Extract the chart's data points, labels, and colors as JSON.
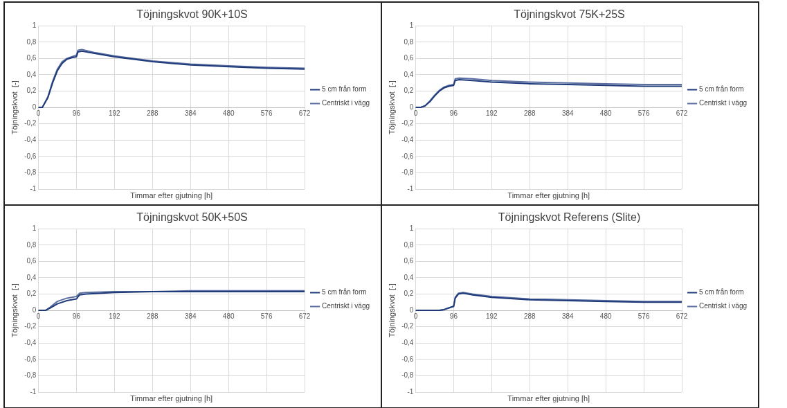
{
  "chart_data": [
    {
      "type": "line",
      "title": "Töjningskvot 90K+10S",
      "xlabel": "Timmar efter gjutning [h]",
      "ylabel": "Töjningskvot  [-]",
      "xlim": [
        0,
        672
      ],
      "xticks": [
        0,
        96,
        192,
        288,
        384,
        480,
        576,
        672
      ],
      "ylim": [
        -1,
        1
      ],
      "yticks": [
        -1,
        {
          "value": -0.8,
          "label": "-0,8"
        },
        {
          "value": -0.6,
          "label": "-0,6"
        },
        {
          "value": -0.4,
          "label": "-0,4"
        },
        {
          "value": -0.2,
          "label": "-0,2"
        },
        0,
        {
          "value": 0.2,
          "label": "0,2"
        },
        {
          "value": 0.4,
          "label": "0,4"
        },
        {
          "value": 0.6,
          "label": "0,6"
        },
        {
          "value": 0.8,
          "label": "0,8"
        },
        1
      ],
      "grid": true,
      "legend": "right",
      "marker": "none",
      "line_style": "solid",
      "series": [
        {
          "name": "5 cm från form",
          "color": "#1f3a7a",
          "x": [
            0,
            10,
            24,
            36,
            48,
            60,
            72,
            84,
            96,
            100,
            110,
            144,
            192,
            288,
            384,
            480,
            576,
            672
          ],
          "values": [
            0,
            0,
            0.12,
            0.3,
            0.45,
            0.54,
            0.59,
            0.61,
            0.62,
            0.68,
            0.69,
            0.66,
            0.62,
            0.56,
            0.52,
            0.5,
            0.48,
            0.47
          ]
        },
        {
          "name": "Centriskt i vägg",
          "color": "#5a6fa0",
          "x": [
            0,
            10,
            24,
            36,
            48,
            60,
            72,
            84,
            96,
            100,
            110,
            144,
            192,
            288,
            384,
            480,
            576,
            672
          ],
          "values": [
            0,
            0,
            0.13,
            0.32,
            0.47,
            0.56,
            0.6,
            0.62,
            0.64,
            0.7,
            0.71,
            0.67,
            0.63,
            0.57,
            0.53,
            0.51,
            0.49,
            0.48
          ]
        }
      ]
    },
    {
      "type": "line",
      "title": "Töjningskvot 75K+25S",
      "xlabel": "Timmar efter gjutning [h]",
      "ylabel": "Töjningskvot  [-]",
      "xlim": [
        0,
        672
      ],
      "xticks": [
        0,
        96,
        192,
        288,
        384,
        480,
        576,
        672
      ],
      "ylim": [
        -1,
        1
      ],
      "yticks": [
        -1,
        {
          "value": -0.8,
          "label": "-0,8"
        },
        {
          "value": -0.6,
          "label": "-0,6"
        },
        {
          "value": -0.4,
          "label": "-0,4"
        },
        {
          "value": -0.2,
          "label": "-0,2"
        },
        0,
        {
          "value": 0.2,
          "label": "0,2"
        },
        {
          "value": 0.4,
          "label": "0,4"
        },
        {
          "value": 0.6,
          "label": "0,6"
        },
        {
          "value": 0.8,
          "label": "0,8"
        },
        1
      ],
      "grid": true,
      "legend": "right",
      "marker": "none",
      "line_style": "solid",
      "series": [
        {
          "name": "5 cm från form",
          "color": "#1f3a7a",
          "x": [
            0,
            12,
            24,
            36,
            48,
            60,
            72,
            84,
            96,
            100,
            110,
            144,
            192,
            288,
            384,
            480,
            576,
            672
          ],
          "values": [
            0,
            0,
            0.02,
            0.07,
            0.14,
            0.2,
            0.24,
            0.26,
            0.27,
            0.33,
            0.34,
            0.33,
            0.31,
            0.29,
            0.28,
            0.27,
            0.26,
            0.26
          ]
        },
        {
          "name": "Centriskt i vägg",
          "color": "#5a6fa0",
          "x": [
            0,
            12,
            24,
            36,
            48,
            60,
            72,
            84,
            96,
            100,
            110,
            144,
            192,
            288,
            384,
            480,
            576,
            672
          ],
          "values": [
            0,
            0,
            0.02,
            0.08,
            0.15,
            0.21,
            0.25,
            0.27,
            0.28,
            0.35,
            0.36,
            0.35,
            0.33,
            0.31,
            0.3,
            0.29,
            0.28,
            0.28
          ]
        }
      ]
    },
    {
      "type": "line",
      "title": "Töjningskvot 50K+50S",
      "xlabel": "Timmar efter gjutning [h]",
      "ylabel": "Töjningskvot  [-]",
      "xlim": [
        0,
        672
      ],
      "xticks": [
        0,
        96,
        192,
        288,
        384,
        480,
        576,
        672
      ],
      "ylim": [
        -1,
        1
      ],
      "yticks": [
        -1,
        {
          "value": -0.8,
          "label": "-0,8"
        },
        {
          "value": -0.6,
          "label": "-0,6"
        },
        {
          "value": -0.4,
          "label": "-0,4"
        },
        {
          "value": -0.2,
          "label": "-0,2"
        },
        0,
        {
          "value": 0.2,
          "label": "0,2"
        },
        {
          "value": 0.4,
          "label": "0,4"
        },
        {
          "value": 0.6,
          "label": "0,6"
        },
        {
          "value": 0.8,
          "label": "0,8"
        },
        1
      ],
      "grid": true,
      "legend": "right",
      "marker": "none",
      "line_style": "solid",
      "series": [
        {
          "name": "5 cm från form",
          "color": "#1f3a7a",
          "x": [
            0,
            18,
            30,
            48,
            72,
            96,
            104,
            120,
            192,
            288,
            384,
            480,
            672
          ],
          "values": [
            0,
            0,
            0.03,
            0.08,
            0.12,
            0.14,
            0.19,
            0.2,
            0.22,
            0.23,
            0.23,
            0.23,
            0.23
          ]
        },
        {
          "name": "Centriskt i vägg",
          "color": "#5a6fa0",
          "x": [
            0,
            18,
            30,
            48,
            72,
            96,
            104,
            120,
            192,
            288,
            384,
            480,
            672
          ],
          "values": [
            0,
            0,
            0.04,
            0.11,
            0.15,
            0.17,
            0.21,
            0.22,
            0.23,
            0.23,
            0.24,
            0.24,
            0.24
          ]
        }
      ]
    },
    {
      "type": "line",
      "title": "Töjningskvot Referens (Slite)",
      "xlabel": "Timmar efter gjutning [h]",
      "ylabel": "Töjningskvot  [-]",
      "xlim": [
        0,
        672
      ],
      "xticks": [
        0,
        96,
        192,
        288,
        384,
        480,
        576,
        672
      ],
      "ylim": [
        -1,
        1
      ],
      "yticks": [
        -1,
        {
          "value": -0.8,
          "label": "-0,8"
        },
        {
          "value": -0.6,
          "label": "-0,6"
        },
        {
          "value": -0.4,
          "label": "-0,4"
        },
        {
          "value": -0.2,
          "label": "-0,2"
        },
        0,
        {
          "value": 0.2,
          "label": "0,2"
        },
        {
          "value": 0.4,
          "label": "0,4"
        },
        {
          "value": 0.6,
          "label": "0,6"
        },
        {
          "value": 0.8,
          "label": "0,8"
        },
        1
      ],
      "grid": true,
      "legend": "right",
      "marker": "none",
      "line_style": "solid",
      "series": [
        {
          "name": "5 cm från form",
          "color": "#1f3a7a",
          "x": [
            0,
            60,
            72,
            84,
            96,
            100,
            108,
            120,
            144,
            192,
            288,
            384,
            480,
            576,
            672
          ],
          "values": [
            0,
            0,
            0.01,
            0.03,
            0.05,
            0.15,
            0.2,
            0.21,
            0.19,
            0.16,
            0.13,
            0.12,
            0.11,
            0.1,
            0.1
          ]
        },
        {
          "name": "Centriskt i vägg",
          "color": "#5a6fa0",
          "x": [
            0,
            60,
            72,
            84,
            96,
            100,
            108,
            120,
            144,
            192,
            288,
            384,
            480,
            576,
            672
          ],
          "values": [
            0,
            0,
            0.01,
            0.03,
            0.05,
            0.16,
            0.21,
            0.22,
            0.2,
            0.17,
            0.14,
            0.13,
            0.12,
            0.11,
            0.11
          ]
        }
      ]
    }
  ]
}
